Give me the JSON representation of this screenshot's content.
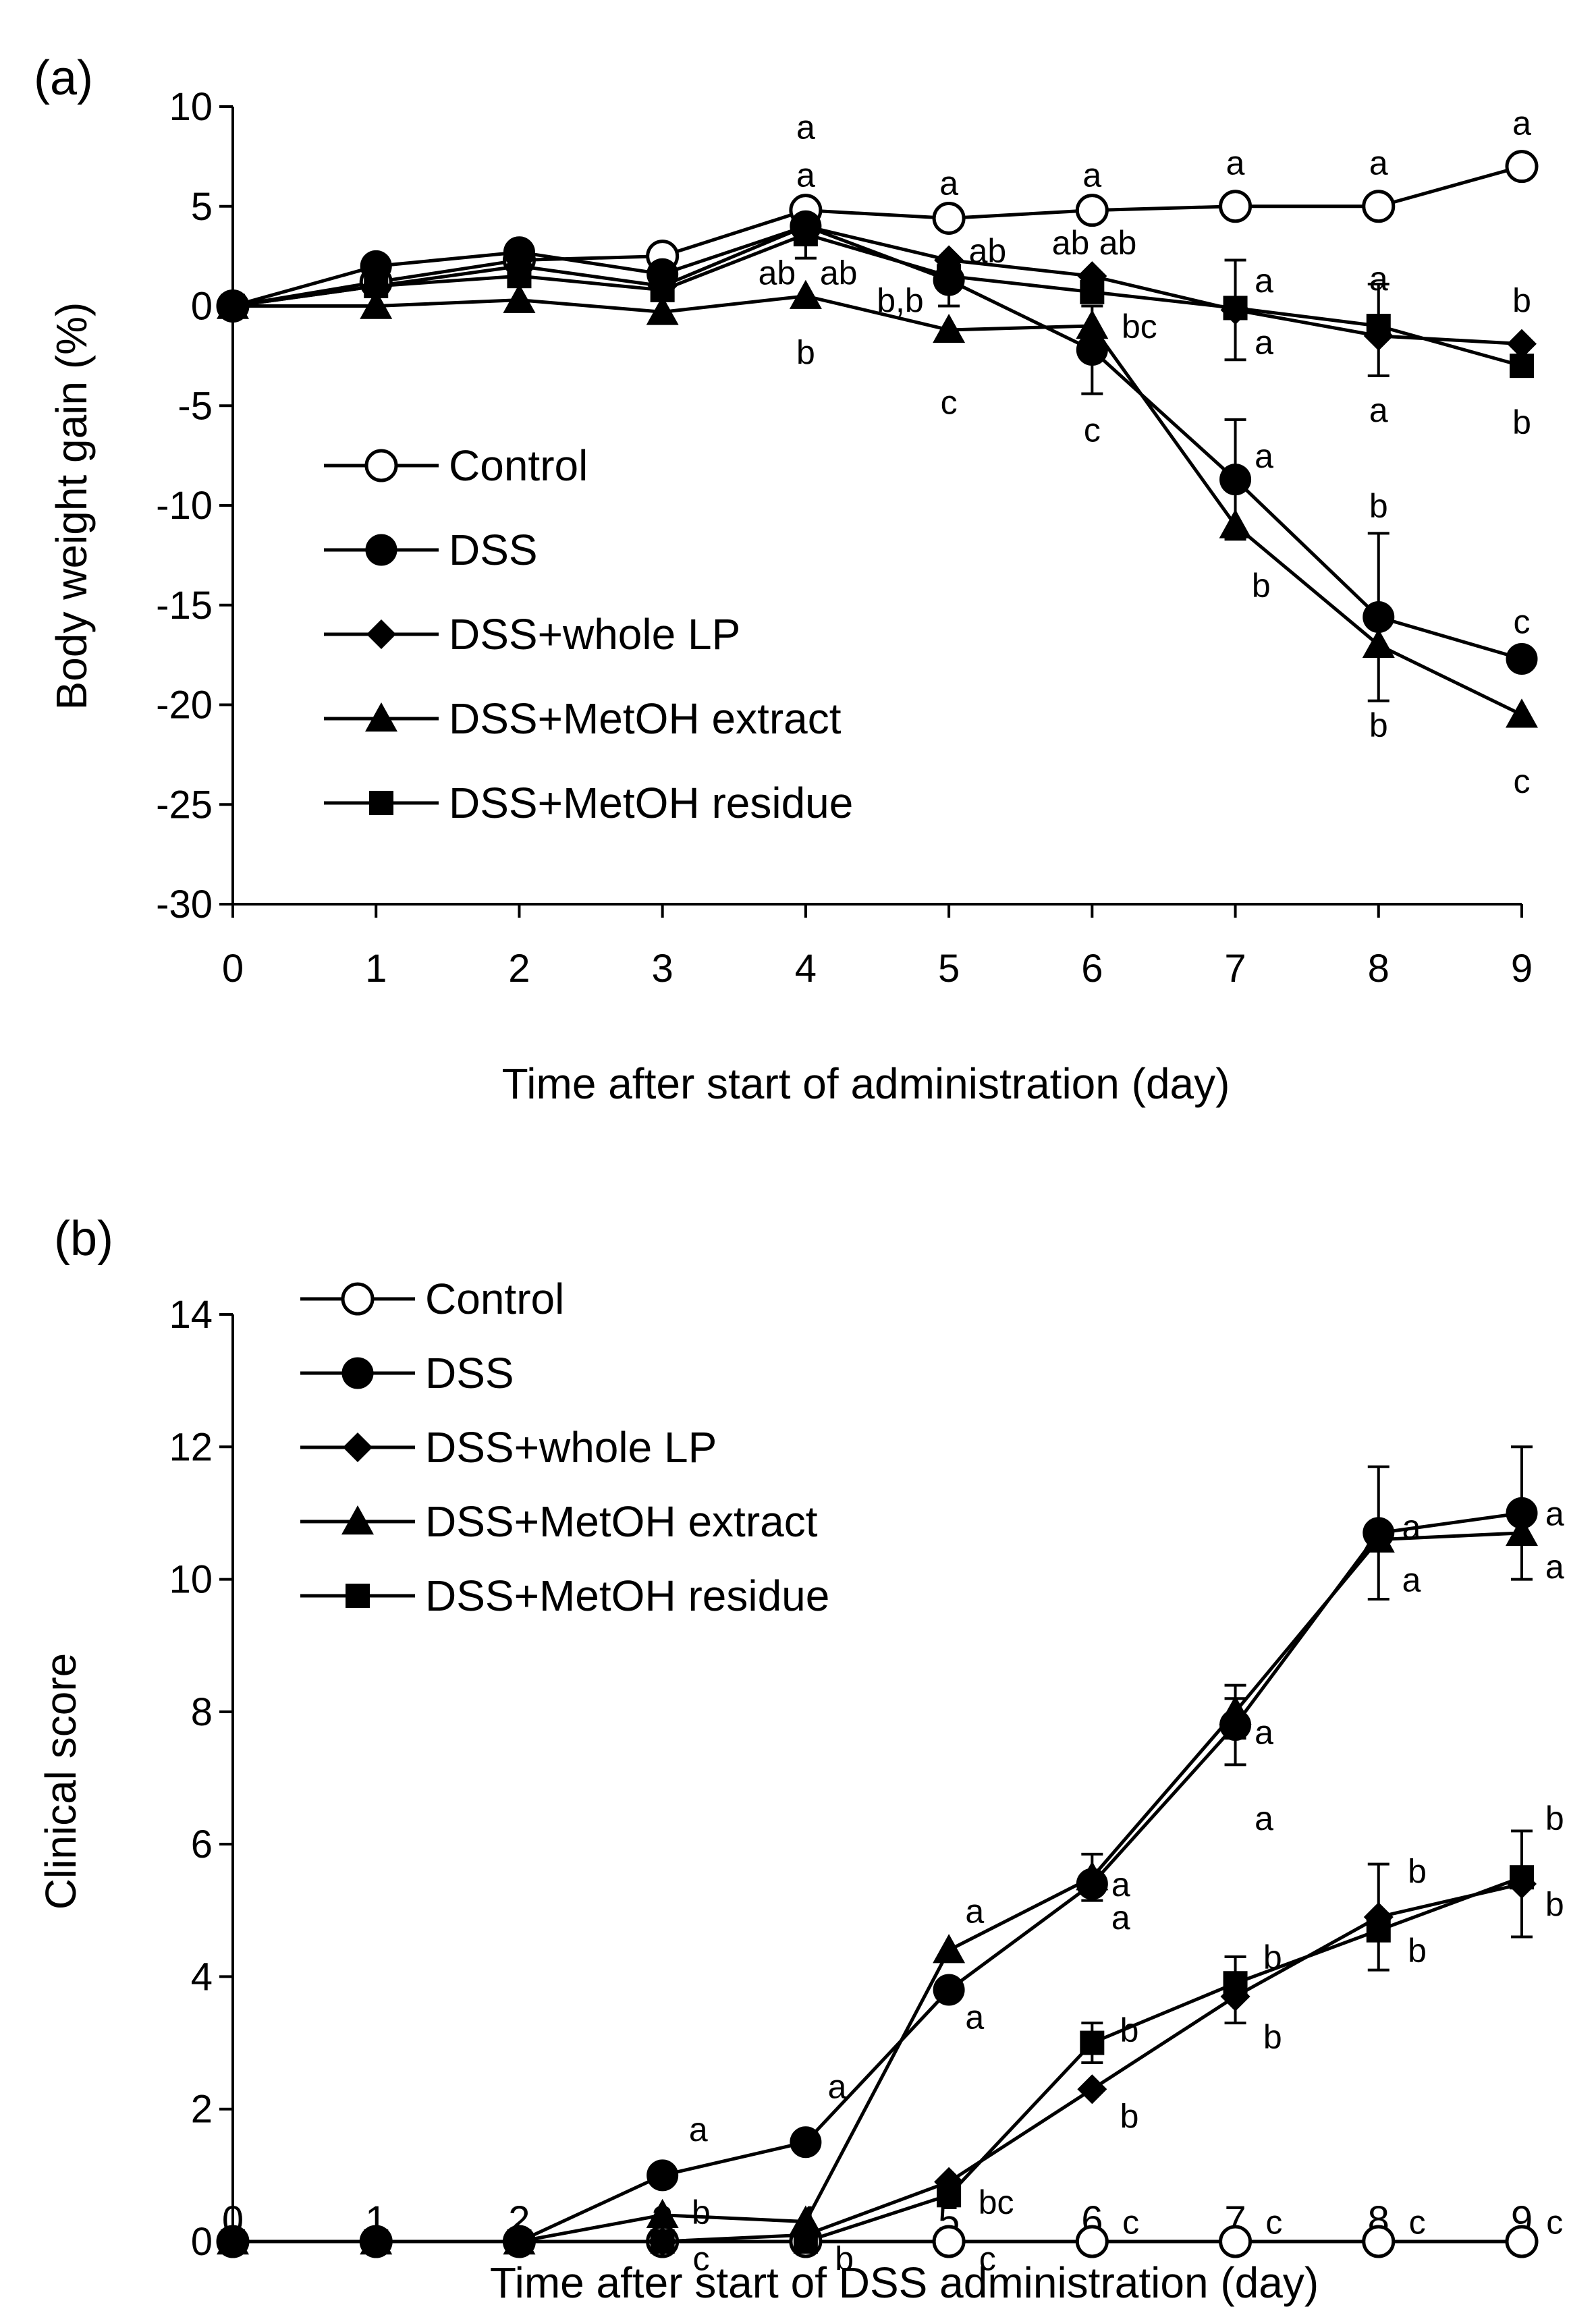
{
  "chart_data": [
    {
      "panel_label": "(a)",
      "type": "line",
      "xlabel": "Time after start of administration (day)",
      "ylabel": "Body weight gain (%)",
      "xlim": [
        0,
        9
      ],
      "ylim": [
        -30,
        10
      ],
      "xticks": [
        "0",
        "1",
        "2",
        "3",
        "4",
        "5",
        "6",
        "7",
        "8",
        "9"
      ],
      "yticks": [
        "10",
        "5",
        "0",
        "-5",
        "-10",
        "-15",
        "-20",
        "-25",
        "-30"
      ],
      "grid": false,
      "legend_position": "lower-left",
      "x": [
        0,
        1,
        2,
        3,
        4,
        5,
        6,
        7,
        8,
        9
      ],
      "series": [
        {
          "name": "Control",
          "marker": "circle-open",
          "values": [
            0,
            1.2,
            2.3,
            2.5,
            4.8,
            4.4,
            4.8,
            5.0,
            5.0,
            7.0
          ]
        },
        {
          "name": "DSS",
          "marker": "circle",
          "values": [
            0,
            2.0,
            2.7,
            1.6,
            4.0,
            1.3,
            -2.2,
            -8.7,
            -15.6,
            -17.7
          ]
        },
        {
          "name": "DSS+whole LP",
          "marker": "diamond",
          "values": [
            0,
            1.0,
            2.0,
            1.0,
            4.0,
            2.3,
            1.5,
            -0.2,
            -1.5,
            -1.9
          ]
        },
        {
          "name": "DSS+MetOH extract",
          "marker": "triangle",
          "values": [
            0,
            0,
            0.3,
            -0.3,
            0.5,
            -1.2,
            -1.0,
            -11.0,
            -17.0,
            -20.5
          ]
        },
        {
          "name": "DSS+MetOH residue",
          "marker": "square",
          "values": [
            0,
            1.0,
            1.5,
            0.8,
            3.6,
            1.5,
            0.7,
            -0.1,
            -1.0,
            -3.0
          ]
        }
      ],
      "error_bars": [
        {
          "x": 4,
          "y": 3.6,
          "err": 1.2
        },
        {
          "x": 5,
          "y": 1.0,
          "err": 1.0
        },
        {
          "x": 6,
          "y": -2.2,
          "err": 2.2
        },
        {
          "x": 7,
          "y": -0.2,
          "err": 2.5
        },
        {
          "x": 7,
          "y": -8.7,
          "err": 3.0
        },
        {
          "x": 8,
          "y": -15.6,
          "err": 4.2
        },
        {
          "x": 8,
          "y": -1.2,
          "err": 2.3
        }
      ],
      "annotations": [
        {
          "text": "a",
          "x": 4,
          "y": 9.0
        },
        {
          "text": "a",
          "x": 4,
          "y": 6.6
        },
        {
          "text": "ab",
          "x": 3.8,
          "y": 1.7
        },
        {
          "text": "ab",
          "x": 4.23,
          "y": 1.7
        },
        {
          "text": "b",
          "x": 4,
          "y": -2.3
        },
        {
          "text": "a",
          "x": 5,
          "y": 6.2
        },
        {
          "text": "ab",
          "x": 5.27,
          "y": 2.8
        },
        {
          "text": "b,b",
          "x": 4.66,
          "y": 0.3
        },
        {
          "text": "c",
          "x": 5,
          "y": -4.8
        },
        {
          "text": "a",
          "x": 6,
          "y": 6.6
        },
        {
          "text": "ab",
          "x": 5.85,
          "y": 3.2
        },
        {
          "text": "ab",
          "x": 6.18,
          "y": 3.2
        },
        {
          "text": "bc",
          "x": 6.33,
          "y": -1.0
        },
        {
          "text": "c",
          "x": 6,
          "y": -6.2
        },
        {
          "text": "a",
          "x": 7,
          "y": 7.2
        },
        {
          "text": "a",
          "x": 7.2,
          "y": 1.3
        },
        {
          "text": "a",
          "x": 7.2,
          "y": -1.8
        },
        {
          "text": "a",
          "x": 7.2,
          "y": -7.5
        },
        {
          "text": "b",
          "x": 7.18,
          "y": -14.0
        },
        {
          "text": "a",
          "x": 8,
          "y": 7.2
        },
        {
          "text": "a",
          "x": 8,
          "y": 1.4
        },
        {
          "text": "a",
          "x": 8,
          "y": -5.2
        },
        {
          "text": "b",
          "x": 8,
          "y": -10.0
        },
        {
          "text": "b",
          "x": 8,
          "y": -21.0
        },
        {
          "text": "a",
          "x": 9,
          "y": 9.2
        },
        {
          "text": "b",
          "x": 9,
          "y": 0.3
        },
        {
          "text": "b",
          "x": 9,
          "y": -5.8
        },
        {
          "text": "c",
          "x": 9,
          "y": -15.8
        },
        {
          "text": "c",
          "x": 9,
          "y": -23.8
        }
      ]
    },
    {
      "panel_label": "(b)",
      "type": "line",
      "xlabel": "Time after start of DSS administration (day)",
      "ylabel": "Clinical score",
      "xlim": [
        0,
        9
      ],
      "ylim": [
        0,
        14
      ],
      "xticks": [
        "0",
        "1",
        "2",
        "3",
        "4",
        "5",
        "6",
        "7",
        "8",
        "9"
      ],
      "yticks": [
        "14",
        "12",
        "10",
        "8",
        "6",
        "4",
        "2",
        "0"
      ],
      "grid": false,
      "legend_position": "top-left",
      "x": [
        0,
        1,
        2,
        3,
        4,
        5,
        6,
        7,
        8,
        9
      ],
      "series": [
        {
          "name": "Control",
          "marker": "circle-open",
          "values": [
            0,
            0,
            0,
            0,
            0,
            0,
            0,
            0,
            0,
            0
          ]
        },
        {
          "name": "DSS",
          "marker": "circle",
          "values": [
            0,
            0,
            0,
            1.0,
            1.5,
            3.8,
            5.4,
            7.8,
            10.7,
            11.0
          ]
        },
        {
          "name": "DSS+whole LP",
          "marker": "diamond",
          "values": [
            0,
            0,
            0,
            0,
            0.1,
            0.9,
            2.3,
            3.7,
            4.9,
            5.4
          ]
        },
        {
          "name": "DSS+MetOH extract",
          "marker": "triangle",
          "values": [
            0,
            0,
            0,
            0.4,
            0.3,
            4.4,
            5.5,
            8.0,
            10.6,
            10.7
          ]
        },
        {
          "name": "DSS+MetOH residue",
          "marker": "square",
          "values": [
            0,
            0,
            0,
            0,
            0,
            0.7,
            3.0,
            3.9,
            4.7,
            5.5
          ]
        }
      ],
      "error_bars": [
        {
          "x": 6,
          "y": 5.5,
          "err": 0.35
        },
        {
          "x": 6,
          "y": 3.0,
          "err": 0.3
        },
        {
          "x": 7,
          "y": 8.0,
          "err": 0.4
        },
        {
          "x": 7,
          "y": 7.7,
          "err": 0.5
        },
        {
          "x": 7,
          "y": 3.8,
          "err": 0.5
        },
        {
          "x": 8,
          "y": 10.7,
          "err": 1.0
        },
        {
          "x": 8,
          "y": 4.9,
          "err": 0.8
        },
        {
          "x": 9,
          "y": 11.0,
          "err": 1.0
        },
        {
          "x": 9,
          "y": 5.4,
          "err": 0.8
        }
      ],
      "annotations": [
        {
          "text": "a",
          "x": 3.25,
          "y": 1.7
        },
        {
          "text": "b",
          "x": 3.27,
          "y": 0.45
        },
        {
          "text": "c",
          "x": 3.27,
          "y": -0.25
        },
        {
          "text": "a",
          "x": 4.22,
          "y": 2.35
        },
        {
          "text": "b",
          "x": 4.27,
          "y": -0.25
        },
        {
          "text": "a",
          "x": 5.18,
          "y": 5.0
        },
        {
          "text": "a",
          "x": 5.18,
          "y": 3.4
        },
        {
          "text": "bc",
          "x": 5.33,
          "y": 0.6
        },
        {
          "text": "c",
          "x": 5.27,
          "y": -0.25
        },
        {
          "text": "a",
          "x": 6.2,
          "y": 5.4
        },
        {
          "text": "a",
          "x": 6.2,
          "y": 4.9
        },
        {
          "text": "b",
          "x": 6.26,
          "y": 3.2
        },
        {
          "text": "b",
          "x": 6.26,
          "y": 1.9
        },
        {
          "text": "c",
          "x": 6.27,
          "y": 0.3
        },
        {
          "text": "a",
          "x": 7.2,
          "y": 7.7
        },
        {
          "text": "a",
          "x": 7.2,
          "y": 6.4
        },
        {
          "text": "b",
          "x": 7.26,
          "y": 4.3
        },
        {
          "text": "b",
          "x": 7.26,
          "y": 3.1
        },
        {
          "text": "c",
          "x": 7.27,
          "y": 0.3
        },
        {
          "text": "a",
          "x": 8.23,
          "y": 10.8
        },
        {
          "text": "a",
          "x": 8.23,
          "y": 10.0
        },
        {
          "text": "b",
          "x": 8.27,
          "y": 5.6
        },
        {
          "text": "b",
          "x": 8.27,
          "y": 4.4
        },
        {
          "text": "c",
          "x": 8.27,
          "y": 0.3
        },
        {
          "text": "a",
          "x": 9.23,
          "y": 11.0
        },
        {
          "text": "a",
          "x": 9.23,
          "y": 10.2
        },
        {
          "text": "b",
          "x": 9.23,
          "y": 6.4
        },
        {
          "text": "b",
          "x": 9.23,
          "y": 5.1
        },
        {
          "text": "c",
          "x": 9.23,
          "y": 0.3
        }
      ]
    }
  ]
}
